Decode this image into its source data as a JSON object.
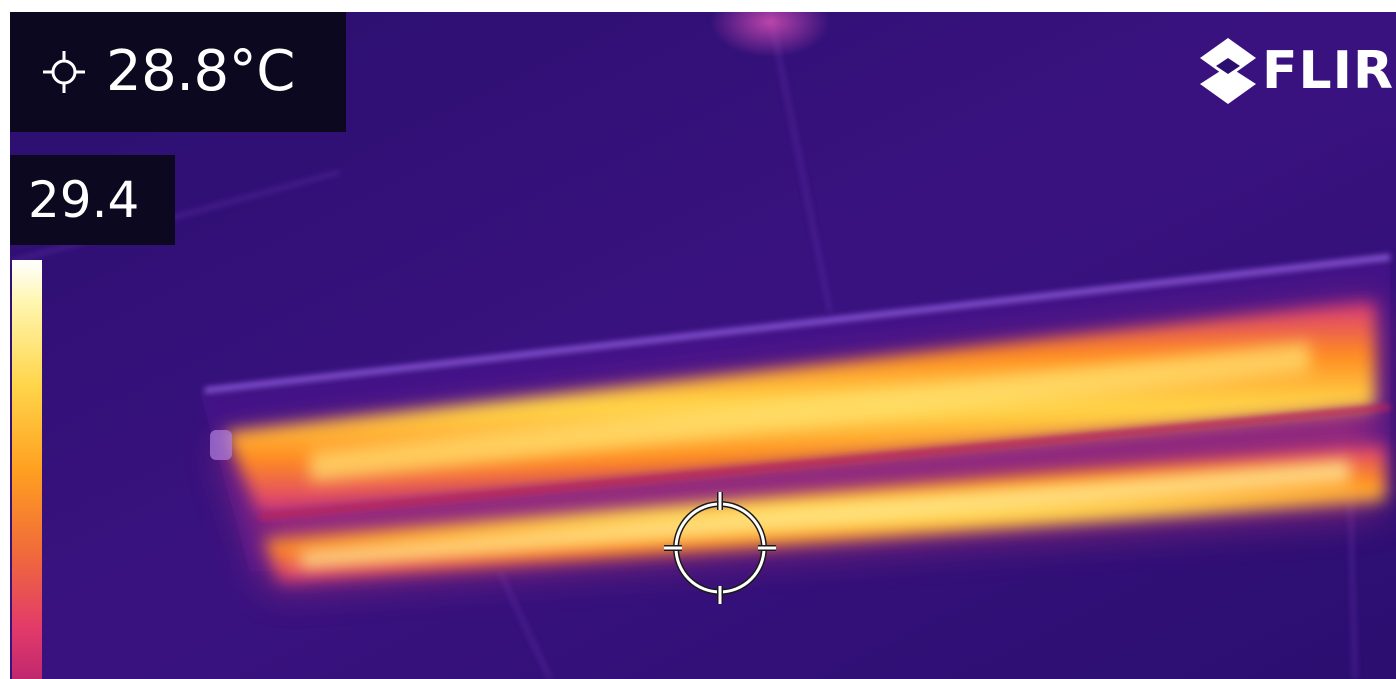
{
  "spot_meter": {
    "icon": "crosshair-icon",
    "value": "28.8°C"
  },
  "scale": {
    "max_value": "29.4",
    "palette": "iron",
    "colors": [
      "#ffffff",
      "#fff6b0",
      "#ffd54a",
      "#ffa020",
      "#f06a3a",
      "#e23a6a",
      "#c0286e"
    ]
  },
  "brand": {
    "logo_text": "FLIR",
    "color": "#ffffff"
  },
  "scene": {
    "background_color": "#2a0f6e",
    "hot_color": "#ffd54a"
  }
}
